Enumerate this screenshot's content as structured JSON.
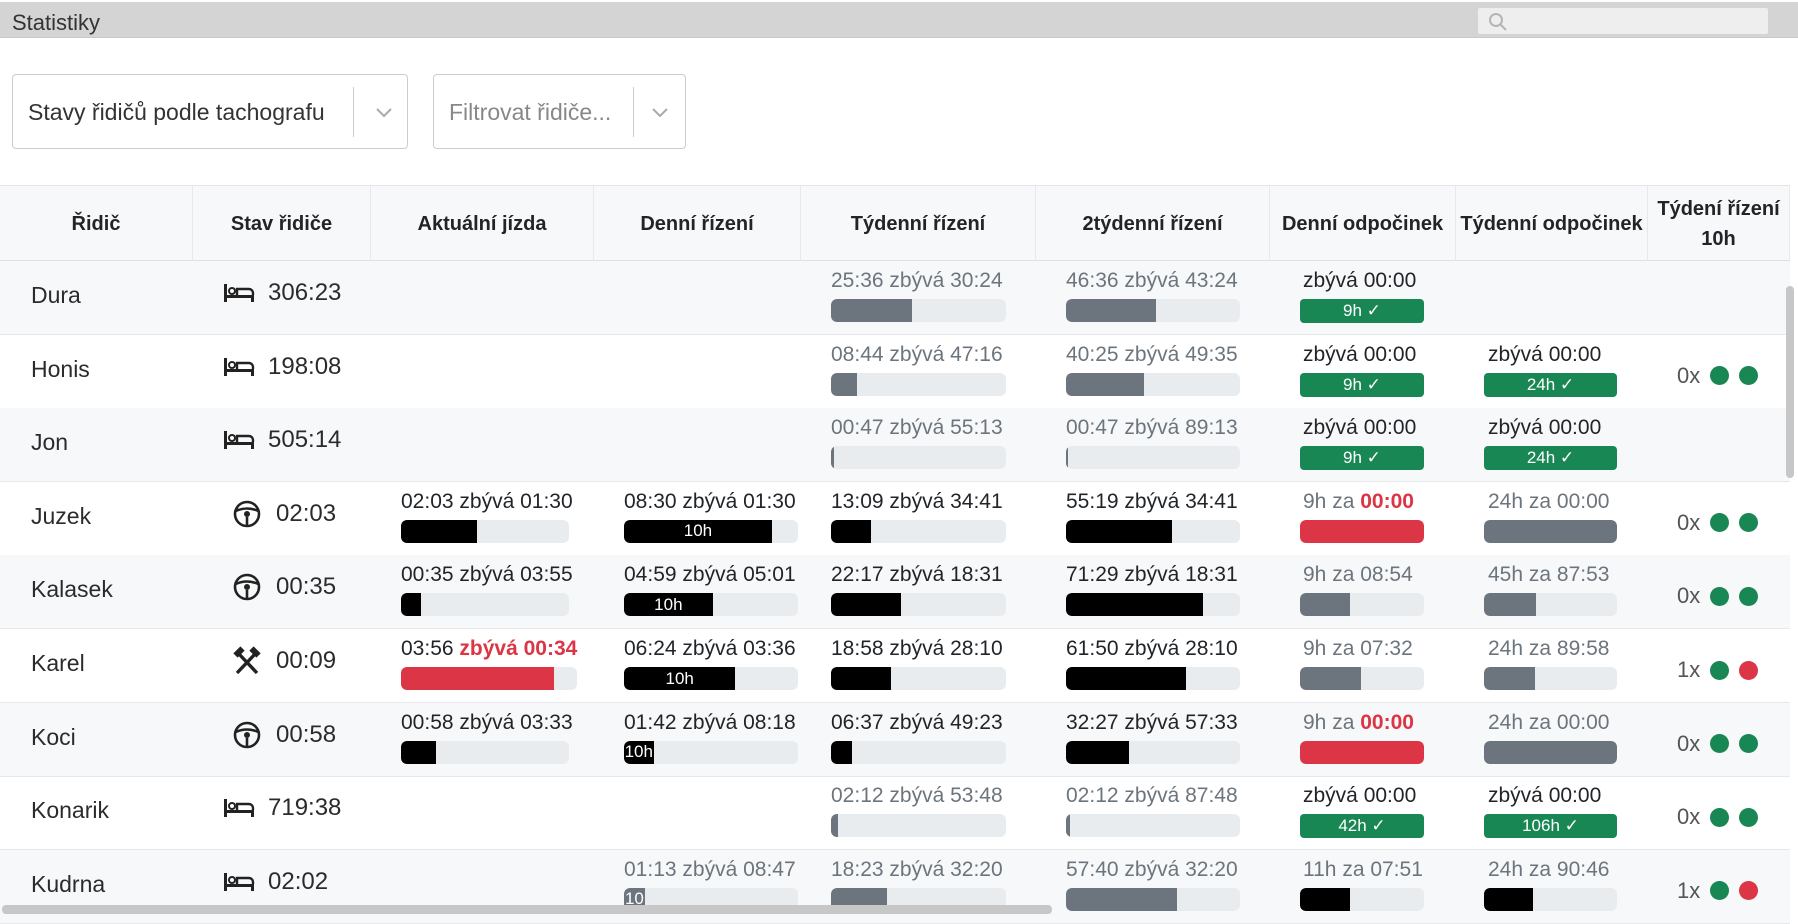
{
  "window": {
    "title": "Statistiky",
    "search_placeholder": ""
  },
  "filters": {
    "view_select": "Stavy řidičů podle tachografu",
    "driver_filter_placeholder": "Filtrovat řidiče..."
  },
  "colors": {
    "green": "#198754",
    "red": "#dc3545",
    "gray": "#6c757d",
    "black": "#000000",
    "track": "#e9ecef"
  },
  "table": {
    "headers": [
      "Řidič",
      "Stav řidiče",
      "Aktuální jízda",
      "Denní řízení",
      "Týdenní řízení",
      "2týdenní řízení",
      "Denní odpočinek",
      "Týdenní odpočinek",
      "Týdení řízení 10h"
    ],
    "rows": [
      {
        "name": "Dura",
        "state_icon": "bed-icon",
        "state_time": "306:23",
        "current": null,
        "daily": null,
        "weekly": {
          "a": "25:36",
          "b": "zbývá 30:24",
          "frac": 0.46,
          "color": "gray",
          "dim": true
        },
        "biweekly": {
          "a": "46:36",
          "b": "zbývá 43:24",
          "frac": 0.52,
          "color": "gray",
          "dim": true
        },
        "daily_rest": {
          "type": "badge",
          "text": "zbývá 00:00",
          "badge": "9h ✓"
        },
        "weekly_rest": null,
        "ten_h": null
      },
      {
        "name": "Honis",
        "state_icon": "bed-icon",
        "state_time": "198:08",
        "current": null,
        "daily": null,
        "weekly": {
          "a": "08:44",
          "b": "zbývá 47:16",
          "frac": 0.15,
          "color": "gray",
          "dim": true
        },
        "biweekly": {
          "a": "40:25",
          "b": "zbývá 49:35",
          "frac": 0.45,
          "color": "gray",
          "dim": true
        },
        "daily_rest": {
          "type": "badge",
          "text": "zbývá 00:00",
          "badge": "9h ✓"
        },
        "weekly_rest": {
          "type": "badge",
          "text": "zbývá 00:00",
          "badge": "24h ✓"
        },
        "ten_h": {
          "count": "0x",
          "dots": [
            "g",
            "g"
          ]
        }
      },
      {
        "name": "Jon",
        "state_icon": "bed-icon",
        "state_time": "505:14",
        "current": null,
        "daily": null,
        "weekly": {
          "a": "00:47",
          "b": "zbývá 55:13",
          "frac": 0.015,
          "color": "gray",
          "dim": true
        },
        "biweekly": {
          "a": "00:47",
          "b": "zbývá 89:13",
          "frac": 0.01,
          "color": "gray",
          "dim": true
        },
        "daily_rest": {
          "type": "badge",
          "text": "zbývá 00:00",
          "badge": "9h ✓"
        },
        "weekly_rest": {
          "type": "badge",
          "text": "zbývá 00:00",
          "badge": "24h ✓"
        },
        "ten_h": null
      },
      {
        "name": "Juzek",
        "state_icon": "steering-wheel-icon",
        "state_time": "02:03",
        "current": {
          "a": "02:03",
          "b": "zbývá 01:30",
          "frac": 0.45,
          "color": "black",
          "red": false
        },
        "daily": {
          "a": "08:30",
          "b": "zbývá 01:30",
          "frac": 0.85,
          "color": "black",
          "label": "10h"
        },
        "weekly": {
          "a": "13:09",
          "b": "zbývá 34:41",
          "frac": 0.23,
          "color": "black"
        },
        "biweekly": {
          "a": "55:19",
          "b": "zbývá 34:41",
          "frac": 0.61,
          "color": "black"
        },
        "daily_rest": {
          "type": "bar",
          "a": "9h za",
          "b": "00:00",
          "bred": true,
          "frac": 1.0,
          "color": "red"
        },
        "weekly_rest": {
          "type": "bar",
          "a": "24h za 00:00",
          "b": "",
          "frac": 1.0,
          "color": "gray"
        },
        "ten_h": {
          "count": "0x",
          "dots": [
            "g",
            "g"
          ]
        }
      },
      {
        "name": "Kalasek",
        "state_icon": "steering-wheel-icon",
        "state_time": "00:35",
        "current": {
          "a": "00:35",
          "b": "zbývá 03:55",
          "frac": 0.12,
          "color": "black",
          "red": false
        },
        "daily": {
          "a": "04:59",
          "b": "zbývá 05:01",
          "frac": 0.51,
          "color": "black",
          "label": "10h"
        },
        "weekly": {
          "a": "22:17",
          "b": "zbývá 18:31",
          "frac": 0.4,
          "color": "black"
        },
        "biweekly": {
          "a": "71:29",
          "b": "zbývá 18:31",
          "frac": 0.79,
          "color": "black"
        },
        "daily_rest": {
          "type": "bar",
          "a": "9h za 08:54",
          "b": "",
          "frac": 0.4,
          "color": "gray"
        },
        "weekly_rest": {
          "type": "bar",
          "a": "45h za 87:53",
          "b": "",
          "frac": 0.39,
          "color": "gray"
        },
        "ten_h": {
          "count": "0x",
          "dots": [
            "g",
            "g"
          ]
        }
      },
      {
        "name": "Karel",
        "state_icon": "hammer-icon",
        "state_time": "00:09",
        "current": {
          "a": "03:56",
          "b": "zbývá 00:34",
          "frac": 0.87,
          "color": "red",
          "red": true
        },
        "daily": {
          "a": "06:24",
          "b": "zbývá 03:36",
          "frac": 0.64,
          "color": "black",
          "label": "10h"
        },
        "weekly": {
          "a": "18:58",
          "b": "zbývá 28:10",
          "frac": 0.34,
          "color": "black"
        },
        "biweekly": {
          "a": "61:50",
          "b": "zbývá 28:10",
          "frac": 0.69,
          "color": "black"
        },
        "daily_rest": {
          "type": "bar",
          "a": "9h za 07:32",
          "b": "",
          "frac": 0.49,
          "color": "gray"
        },
        "weekly_rest": {
          "type": "bar",
          "a": "24h za 89:58",
          "b": "",
          "frac": 0.38,
          "color": "gray"
        },
        "ten_h": {
          "count": "1x",
          "dots": [
            "g",
            "r"
          ]
        }
      },
      {
        "name": "Koci",
        "state_icon": "steering-wheel-icon",
        "state_time": "00:58",
        "current": {
          "a": "00:58",
          "b": "zbývá 03:33",
          "frac": 0.21,
          "color": "black",
          "red": false
        },
        "daily": {
          "a": "01:42",
          "b": "zbývá 08:18",
          "frac": 0.17,
          "color": "black",
          "label": "10h"
        },
        "weekly": {
          "a": "06:37",
          "b": "zbývá 49:23",
          "frac": 0.12,
          "color": "black"
        },
        "biweekly": {
          "a": "32:27",
          "b": "zbývá 57:33",
          "frac": 0.36,
          "color": "black"
        },
        "daily_rest": {
          "type": "bar",
          "a": "9h za",
          "b": "00:00",
          "bred": true,
          "frac": 1.0,
          "color": "red"
        },
        "weekly_rest": {
          "type": "bar",
          "a": "24h za 00:00",
          "b": "",
          "frac": 1.0,
          "color": "gray"
        },
        "ten_h": {
          "count": "0x",
          "dots": [
            "g",
            "g"
          ]
        }
      },
      {
        "name": "Konarik",
        "state_icon": "bed-icon",
        "state_time": "719:38",
        "current": null,
        "daily": null,
        "weekly": {
          "a": "02:12",
          "b": "zbývá 53:48",
          "frac": 0.04,
          "color": "gray",
          "dim": true
        },
        "biweekly": {
          "a": "02:12",
          "b": "zbývá 87:48",
          "frac": 0.025,
          "color": "gray",
          "dim": true
        },
        "daily_rest": {
          "type": "badge",
          "text": "zbývá 00:00",
          "badge": "42h ✓"
        },
        "weekly_rest": {
          "type": "badge",
          "text": "zbývá 00:00",
          "badge": "106h ✓"
        },
        "ten_h": {
          "count": "0x",
          "dots": [
            "g",
            "g"
          ]
        }
      },
      {
        "name": "Kudrna",
        "state_icon": "bed-icon",
        "state_time": "02:02",
        "current": null,
        "daily": {
          "a": "01:13",
          "b": "zbývá 08:47",
          "frac": 0.12,
          "color": "gray",
          "label": "10",
          "dim": true
        },
        "weekly": {
          "a": "18:23",
          "b": "zbývá 32:20",
          "frac": 0.32,
          "color": "gray",
          "dim": true
        },
        "biweekly": {
          "a": "57:40",
          "b": "zbývá 32:20",
          "frac": 0.64,
          "color": "gray",
          "dim": true
        },
        "daily_rest": {
          "type": "bar",
          "a": "11h za 07:51",
          "b": "",
          "frac": 0.4,
          "color": "black"
        },
        "weekly_rest": {
          "type": "bar",
          "a": "24h za 90:46",
          "b": "",
          "frac": 0.37,
          "color": "black"
        },
        "ten_h": {
          "count": "1x",
          "dots": [
            "g",
            "r"
          ]
        }
      }
    ]
  }
}
